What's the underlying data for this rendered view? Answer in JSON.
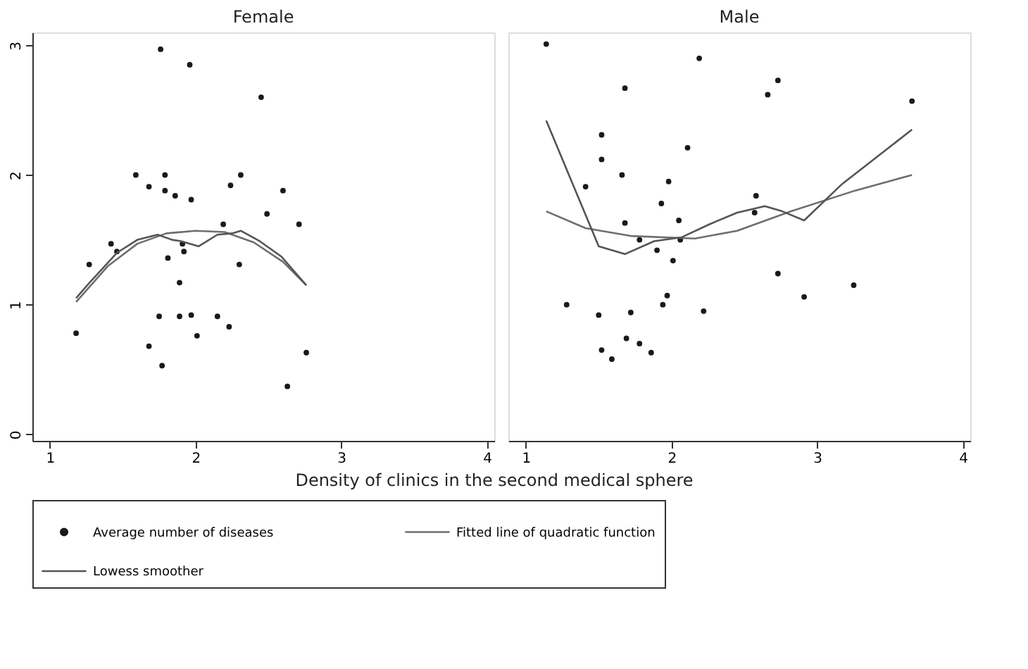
{
  "chart_data": [
    {
      "type": "scatter",
      "title": "Female",
      "xlabel": "Density of clinics in the second medical sphere",
      "xlim": [
        0.88,
        4.05
      ],
      "ylim": [
        -0.05,
        3.1
      ],
      "xticks": [
        1,
        2,
        3,
        4
      ],
      "yticks": [
        0,
        1,
        2,
        3
      ],
      "grid": false,
      "legend": "bottom",
      "series": [
        {
          "name": "Average number of diseases",
          "marker": "circle",
          "color": "#1a1a1a",
          "x": [
            1.76,
            1.96,
            2.45,
            1.59,
            1.68,
            1.79,
            1.79,
            1.86,
            1.97,
            2.24,
            2.31,
            2.6,
            2.49,
            2.19,
            2.71,
            1.42,
            1.46,
            1.91,
            1.92,
            1.81,
            2.3,
            1.27,
            1.89,
            1.75,
            1.89,
            1.97,
            2.15,
            2.23,
            2.01,
            1.18,
            1.68,
            1.77,
            2.76,
            2.63
          ],
          "values": [
            2.97,
            2.85,
            2.6,
            2.0,
            1.91,
            2.0,
            1.88,
            1.84,
            1.81,
            1.92,
            2.0,
            1.88,
            1.7,
            1.62,
            1.62,
            1.47,
            1.41,
            1.47,
            1.41,
            1.36,
            1.31,
            1.31,
            1.17,
            0.91,
            0.91,
            0.92,
            0.91,
            0.83,
            0.76,
            0.78,
            0.68,
            0.53,
            0.63,
            0.37
          ]
        },
        {
          "name": "Fitted line of quadratic function",
          "type": "line",
          "marker": "none",
          "color": "#6e6e6e",
          "x": [
            1.18,
            1.4,
            1.6,
            1.8,
            2.0,
            2.2,
            2.4,
            2.6,
            2.76
          ],
          "values": [
            1.02,
            1.3,
            1.47,
            1.55,
            1.57,
            1.56,
            1.48,
            1.33,
            1.15
          ]
        },
        {
          "name": "Lowess smoother",
          "type": "line",
          "marker": "none",
          "color": "#555555",
          "x": [
            1.18,
            1.28,
            1.46,
            1.6,
            1.74,
            1.84,
            1.9,
            2.02,
            2.15,
            2.25,
            2.31,
            2.44,
            2.59,
            2.76
          ],
          "values": [
            1.05,
            1.18,
            1.4,
            1.5,
            1.54,
            1.5,
            1.49,
            1.45,
            1.54,
            1.55,
            1.57,
            1.49,
            1.37,
            1.15
          ]
        }
      ]
    },
    {
      "type": "scatter",
      "title": "Male",
      "xlim": [
        0.88,
        4.05
      ],
      "ylim": [
        -0.05,
        3.1
      ],
      "xticks": [
        1,
        2,
        3,
        4
      ],
      "yticks": [
        0,
        1,
        2,
        3
      ],
      "grid": false,
      "tick_labels": "x",
      "series": [
        {
          "name": "Average number of diseases",
          "marker": "circle",
          "color": "#1a1a1a",
          "x": [
            1.14,
            2.19,
            1.68,
            2.73,
            2.66,
            3.65,
            1.52,
            1.52,
            2.11,
            1.66,
            1.41,
            1.98,
            1.93,
            2.58,
            2.57,
            1.68,
            2.05,
            1.78,
            2.06,
            1.9,
            2.01,
            2.73,
            3.25,
            1.97,
            1.94,
            1.28,
            2.91,
            1.5,
            1.72,
            2.22,
            1.69,
            1.78,
            1.86,
            1.52,
            1.59
          ],
          "values": [
            3.01,
            2.9,
            2.67,
            2.73,
            2.62,
            2.57,
            2.31,
            2.12,
            2.21,
            2.0,
            1.91,
            1.95,
            1.78,
            1.84,
            1.71,
            1.63,
            1.65,
            1.5,
            1.5,
            1.42,
            1.34,
            1.24,
            1.15,
            1.07,
            1.0,
            1.0,
            1.06,
            0.92,
            0.94,
            0.95,
            0.74,
            0.7,
            0.63,
            0.65,
            0.58
          ]
        },
        {
          "name": "Fitted line of quadratic function",
          "type": "line",
          "marker": "none",
          "color": "#6e6e6e",
          "x": [
            1.14,
            1.41,
            1.72,
            2.16,
            2.45,
            2.82,
            3.26,
            3.65
          ],
          "values": [
            1.72,
            1.59,
            1.53,
            1.51,
            1.57,
            1.72,
            1.88,
            2.0
          ]
        },
        {
          "name": "Lowess smoother",
          "type": "line",
          "marker": "none",
          "color": "#555555",
          "x": [
            1.14,
            1.5,
            1.68,
            1.88,
            2.07,
            2.26,
            2.45,
            2.64,
            2.76,
            2.91,
            3.17,
            3.65
          ],
          "values": [
            2.42,
            1.45,
            1.39,
            1.49,
            1.52,
            1.62,
            1.71,
            1.76,
            1.72,
            1.65,
            1.93,
            2.35
          ]
        }
      ]
    }
  ]
}
